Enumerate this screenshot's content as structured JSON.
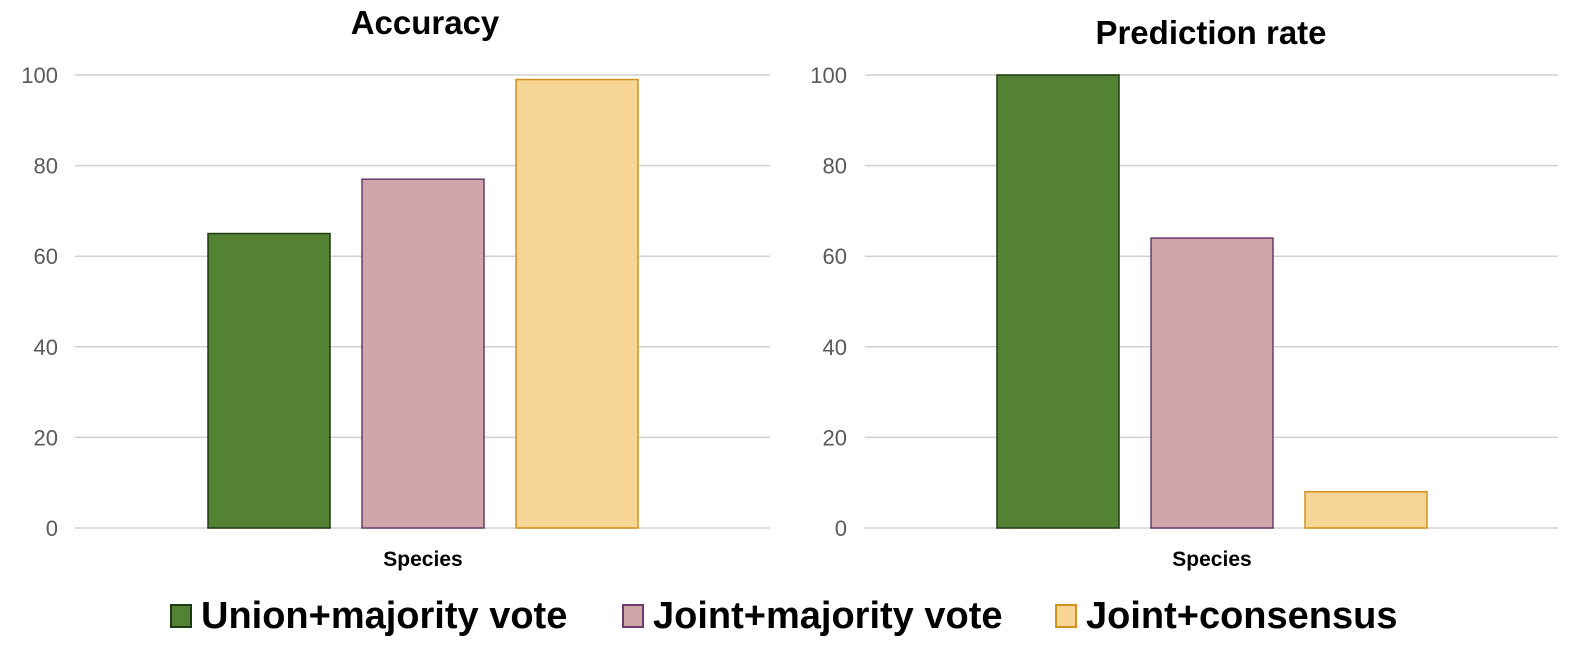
{
  "chart_data": [
    {
      "type": "bar",
      "title": "Accuracy",
      "categories": [
        "Species"
      ],
      "ylim": [
        0,
        100
      ],
      "yticks": [
        0,
        20,
        40,
        60,
        80,
        100
      ],
      "grid": true,
      "series": [
        {
          "name": "Union+majority vote",
          "values": [
            65
          ]
        },
        {
          "name": "Joint+majority vote",
          "values": [
            77
          ]
        },
        {
          "name": "Joint+consensus",
          "values": [
            99
          ]
        }
      ]
    },
    {
      "type": "bar",
      "title": "Prediction rate",
      "categories": [
        "Species"
      ],
      "ylim": [
        0,
        100
      ],
      "yticks": [
        0,
        20,
        40,
        60,
        80,
        100
      ],
      "grid": true,
      "series": [
        {
          "name": "Union+majority vote",
          "values": [
            100
          ]
        },
        {
          "name": "Joint+majority vote",
          "values": [
            64
          ]
        },
        {
          "name": "Joint+consensus",
          "values": [
            8
          ]
        }
      ]
    }
  ],
  "legend": {
    "placement": "bottom",
    "items": [
      {
        "label": "Union+majority vote",
        "fill": "#548235",
        "stroke": "#1e3a10"
      },
      {
        "label": "Joint+majority vote",
        "fill": "#cfa7a8",
        "stroke": "#6b3a6f"
      },
      {
        "label": "Joint+consensus",
        "fill": "#f7d595",
        "stroke": "#d4901c"
      }
    ]
  }
}
